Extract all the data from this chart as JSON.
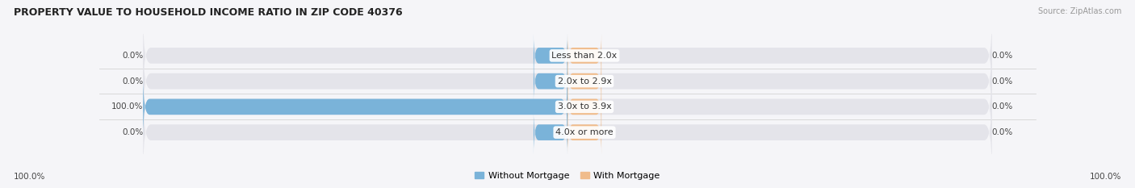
{
  "title": "PROPERTY VALUE TO HOUSEHOLD INCOME RATIO IN ZIP CODE 40376",
  "source": "Source: ZipAtlas.com",
  "categories": [
    "Less than 2.0x",
    "2.0x to 2.9x",
    "3.0x to 3.9x",
    "4.0x or more"
  ],
  "without_mortgage": [
    0.0,
    0.0,
    100.0,
    0.0
  ],
  "with_mortgage": [
    0.0,
    0.0,
    0.0,
    0.0
  ],
  "color_without": "#7ab3d9",
  "color_with": "#f0bc8c",
  "bg_bar": "#e4e4ea",
  "bg_figure": "#f5f5f8",
  "title_color": "#222222",
  "label_color": "#444444",
  "source_color": "#999999",
  "axis_label_left": "100.0%",
  "axis_label_right": "100.0%",
  "legend_without": "Without Mortgage",
  "legend_with": "With Mortgage",
  "stub_size": 8.0,
  "bar_height": 0.62
}
